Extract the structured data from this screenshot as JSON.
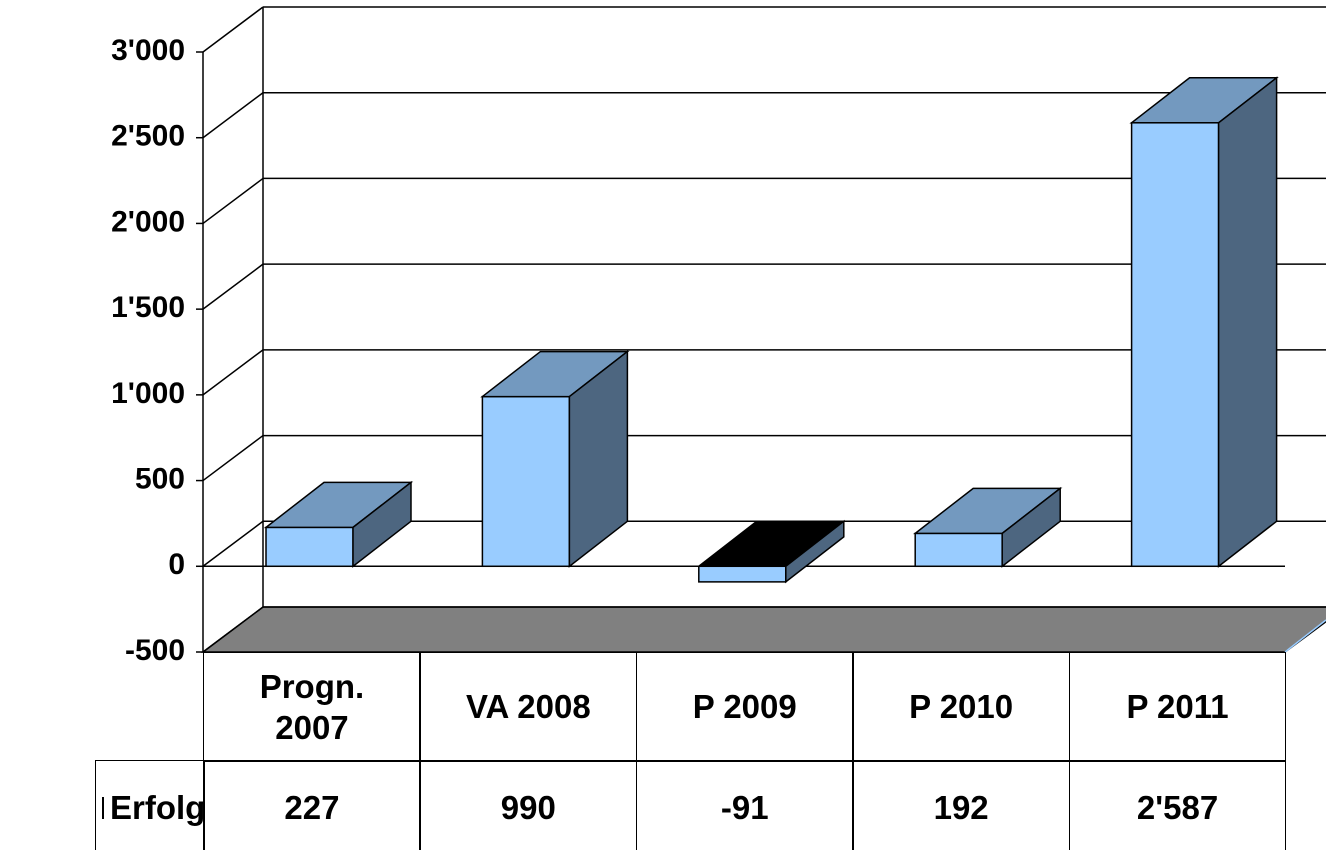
{
  "chart_data": {
    "type": "bar3d",
    "categories": [
      "Progn. 2007",
      "VA 2008",
      "P 2009",
      "P 2010",
      "P 2011"
    ],
    "series": [
      {
        "name": "Erfolg",
        "color": "#99ccff",
        "values": [
          227,
          990,
          -91,
          192,
          2587
        ],
        "value_labels": [
          "227",
          "990",
          "-91",
          "192",
          "2'587"
        ]
      }
    ],
    "ylim": [
      -500,
      3000
    ],
    "yticks": [
      {
        "value": -500,
        "label": "-500"
      },
      0,
      500,
      {
        "value": 1000,
        "label": "1'000"
      },
      {
        "value": 1500,
        "label": "1'500"
      },
      {
        "value": 2000,
        "label": "2'000"
      },
      {
        "value": 2500,
        "label": "2'500"
      },
      {
        "value": 3000,
        "label": "3'000"
      }
    ],
    "grid": true,
    "data_table": true
  }
}
